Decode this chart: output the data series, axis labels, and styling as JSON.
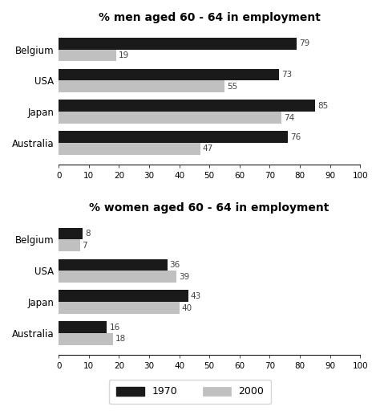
{
  "men_title": "% men aged 60 - 64 in employment",
  "women_title": "% women aged 60 - 64 in employment",
  "countries": [
    "Belgium",
    "USA",
    "Japan",
    "Australia"
  ],
  "men_1970": [
    79,
    73,
    85,
    76
  ],
  "men_2000": [
    19,
    55,
    74,
    47
  ],
  "women_1970": [
    8,
    36,
    43,
    16
  ],
  "women_2000": [
    7,
    39,
    40,
    18
  ],
  "color_1970": "#1a1a1a",
  "color_2000": "#c0c0c0",
  "xlim": [
    0,
    100
  ],
  "xticks": [
    0,
    10,
    20,
    30,
    40,
    50,
    60,
    70,
    80,
    90,
    100
  ],
  "bar_height": 0.38,
  "legend_1970": "1970",
  "legend_2000": "2000",
  "label_fontsize": 7.5,
  "title_fontsize": 10,
  "tick_fontsize": 7.5,
  "ylabel_fontsize": 8.5
}
